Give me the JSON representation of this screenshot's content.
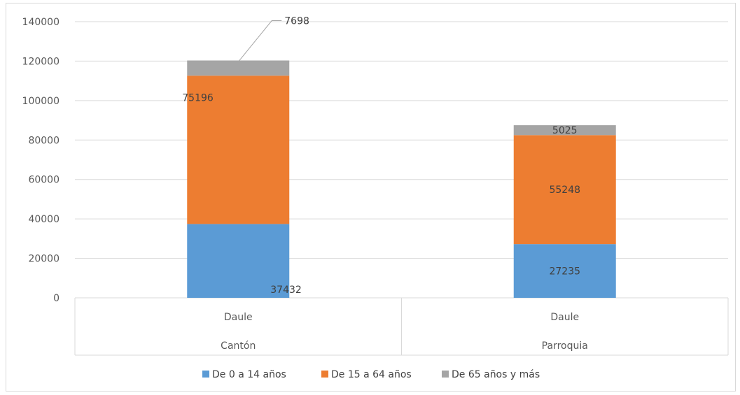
{
  "chart_data": {
    "type": "bar",
    "stacked": true,
    "categories": [
      "Daule",
      "Daule"
    ],
    "category_groups": [
      "Cantón",
      "Parroquia"
    ],
    "series": [
      {
        "name": "De 0 a 14 años",
        "values": [
          37432,
          27235
        ],
        "color": "#5b9bd5"
      },
      {
        "name": "De 15 a 64 años",
        "values": [
          75196,
          55248
        ],
        "color": "#ed7d31"
      },
      {
        "name": "De 65 años y más",
        "values": [
          7698,
          5025
        ],
        "color": "#a5a5a5"
      }
    ],
    "ylim": [
      0,
      140000
    ],
    "yticks": [
      "0",
      "20000",
      "40000",
      "60000",
      "80000",
      "100000",
      "120000",
      "140000"
    ],
    "grid": true,
    "legend": "bottom",
    "data_labels": [
      [
        "37432",
        "27235"
      ],
      [
        "75196",
        "55248"
      ],
      [
        "7698",
        "5025"
      ]
    ]
  }
}
